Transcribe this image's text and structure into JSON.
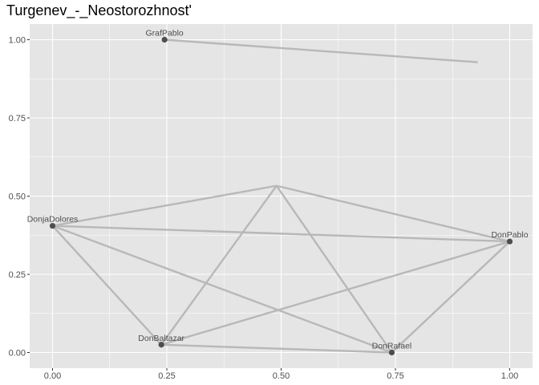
{
  "chart_data": {
    "type": "network",
    "title": "Turgenev_-_Neostorozhnost'",
    "xlabel": "",
    "ylabel": "",
    "xlim": [
      -0.05,
      1.05
    ],
    "ylim": [
      -0.05,
      1.05
    ],
    "x_ticks": [
      0.0,
      0.25,
      0.5,
      0.75,
      1.0
    ],
    "x_tick_labels": [
      "0.00",
      "0.25",
      "0.50",
      "0.75",
      "1.00"
    ],
    "y_ticks": [
      0.0,
      0.25,
      0.5,
      0.75,
      1.0
    ],
    "y_tick_labels": [
      "0.00",
      "0.25",
      "0.50",
      "0.75",
      "1.00"
    ],
    "grid": true,
    "panel_background": "#e5e5e5",
    "grid_color": "#ffffff",
    "edge_color": "#b8b8b8",
    "node_color": "#4d4d4d",
    "nodes": [
      {
        "name": "GrafPablo",
        "x": 0.245,
        "y": 1.0,
        "show": true
      },
      {
        "name": "DonjaDolores",
        "x": 0.0,
        "y": 0.405,
        "show": true
      },
      {
        "name": "DonPablo",
        "x": 1.0,
        "y": 0.355,
        "show": true
      },
      {
        "name": "DonBaltazar",
        "x": 0.238,
        "y": 0.025,
        "show": true
      },
      {
        "name": "DonRafael",
        "x": 0.742,
        "y": 0.0,
        "show": true
      },
      {
        "name": "",
        "x": 0.49,
        "y": 0.533,
        "show": false
      },
      {
        "name": "",
        "x": 0.93,
        "y": 0.928,
        "show": false
      }
    ],
    "edges": [
      [
        "GrafPablo",
        6
      ],
      [
        "DonjaDolores",
        5
      ],
      [
        "DonjaDolores",
        "DonPablo"
      ],
      [
        "DonjaDolores",
        "DonBaltazar"
      ],
      [
        "DonjaDolores",
        "DonRafael"
      ],
      [
        5,
        "DonPablo"
      ],
      [
        5,
        "DonBaltazar"
      ],
      [
        5,
        "DonRafael"
      ],
      [
        "DonBaltazar",
        "DonPablo"
      ],
      [
        "DonBaltazar",
        "DonRafael"
      ],
      [
        "DonRafael",
        "DonPablo"
      ]
    ]
  }
}
